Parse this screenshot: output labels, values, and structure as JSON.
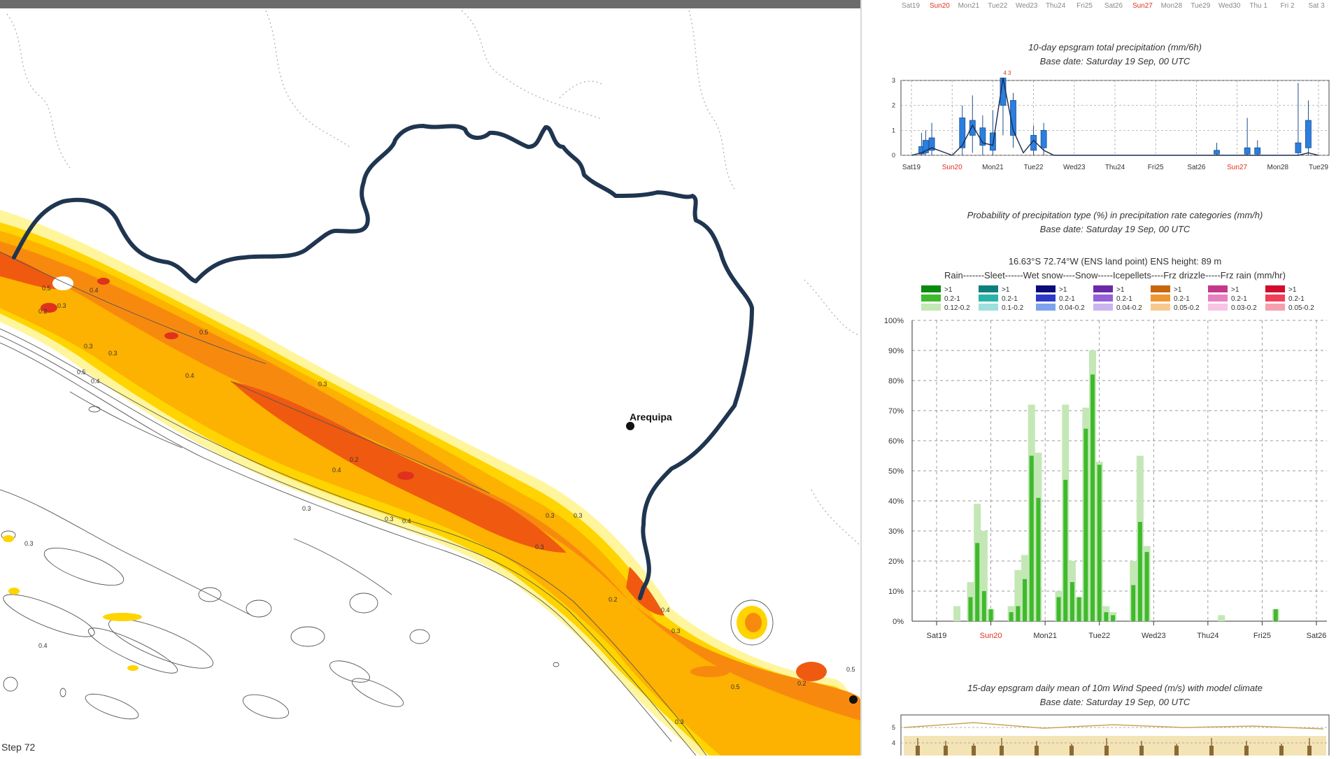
{
  "map": {
    "city_label": "Arequipa",
    "step_label": "Step 72",
    "contour_labels": [
      "0.5",
      "0.3",
      "0.4",
      "0.2",
      "0.3",
      "0.5",
      "0.4",
      "0.3",
      "0.5",
      "0.4",
      "0.3",
      "0.2",
      "0.4",
      "0.3",
      "0.3",
      "0.4",
      "0.3",
      "0.3",
      "0.3",
      "0.2",
      "0.4",
      "0.3",
      "0.5",
      "0.3",
      "0.2",
      "0.5",
      "0.3",
      "0.4"
    ],
    "colors": {
      "border": "#1f3550",
      "light_yellow": "#fff59d",
      "yellow": "#ffd400",
      "amber": "#fdb100",
      "orange": "#f78a0e",
      "dark_orange": "#ef5a10",
      "red_orange": "#e0311f"
    }
  },
  "top_strip": {
    "days": [
      "Sat19",
      "Sun20",
      "Mon21",
      "Tue22",
      "Wed23",
      "Thu24",
      "Fri25",
      "Sat26",
      "Sun27",
      "Mon28",
      "Tue29",
      "Wed30",
      "Thu 1",
      "Fri 2",
      "Sat 3"
    ],
    "highlight": [
      "Sun20",
      "Sun27"
    ]
  },
  "chart_data": [
    {
      "type": "line",
      "title": "10-day epsgram total precipitation (mm/6h)",
      "subtitle": "Base date: Saturday 19 Sep, 00 UTC",
      "categories": [
        "Sat19",
        "Sun20",
        "Mon21",
        "Tue22",
        "Wed23",
        "Thu24",
        "Fri25",
        "Sat26",
        "Sun27",
        "Mon28",
        "Tue29"
      ],
      "highlight": [
        "Sun20",
        "Sun27"
      ],
      "ylim": [
        0,
        3
      ],
      "yticks": [
        0,
        1,
        2,
        3
      ],
      "overflow_note": "4 3",
      "series": [
        {
          "x": [
            0,
            0.25,
            0.5,
            0.75,
            1.0,
            1.25,
            1.5,
            1.75,
            2.0,
            2.25,
            2.5,
            2.75,
            3.0,
            3.25,
            3.5,
            4.0,
            5.0,
            6.0,
            7.0,
            8.0,
            9.0,
            9.5,
            9.75,
            10.0
          ],
          "values": [
            0.0,
            0.1,
            0.3,
            0.15,
            0.0,
            0.4,
            1.2,
            0.5,
            0.4,
            3.1,
            1.0,
            0.1,
            0.6,
            0.2,
            0.0,
            0.0,
            0.0,
            0.0,
            0.0,
            0.0,
            0.0,
            0.0,
            0.1,
            0.0
          ]
        }
      ],
      "boxes": [
        {
          "x": 0.25,
          "low": 0.0,
          "q1": 0.05,
          "q3": 0.35,
          "high": 0.9
        },
        {
          "x": 0.35,
          "low": 0.0,
          "q1": 0.1,
          "q3": 0.6,
          "high": 1.0
        },
        {
          "x": 0.5,
          "low": 0.0,
          "q1": 0.2,
          "q3": 0.7,
          "high": 1.3
        },
        {
          "x": 1.25,
          "low": 0.0,
          "q1": 0.3,
          "q3": 1.5,
          "high": 2.0
        },
        {
          "x": 1.5,
          "low": 0.1,
          "q1": 0.8,
          "q3": 1.4,
          "high": 2.4
        },
        {
          "x": 1.75,
          "low": 0.0,
          "q1": 0.4,
          "q3": 1.1,
          "high": 1.6
        },
        {
          "x": 2.0,
          "low": 0.0,
          "q1": 0.2,
          "q3": 0.9,
          "high": 1.8
        },
        {
          "x": 2.25,
          "low": 0.8,
          "q1": 2.0,
          "q3": 3.1,
          "high": 3.1
        },
        {
          "x": 2.5,
          "low": 0.3,
          "q1": 0.8,
          "q3": 2.2,
          "high": 2.5
        },
        {
          "x": 3.0,
          "low": 0.0,
          "q1": 0.2,
          "q3": 0.8,
          "high": 1.2
        },
        {
          "x": 3.25,
          "low": 0.0,
          "q1": 0.3,
          "q3": 1.0,
          "high": 1.3
        },
        {
          "x": 7.5,
          "low": 0.0,
          "q1": 0.05,
          "q3": 0.2,
          "high": 0.5
        },
        {
          "x": 8.25,
          "low": 0.0,
          "q1": 0.05,
          "q3": 0.3,
          "high": 1.5
        },
        {
          "x": 8.5,
          "low": 0.0,
          "q1": 0.05,
          "q3": 0.3,
          "high": 0.6
        },
        {
          "x": 9.5,
          "low": 0.0,
          "q1": 0.1,
          "q3": 0.5,
          "high": 2.9
        },
        {
          "x": 9.75,
          "low": 0.0,
          "q1": 0.3,
          "q3": 1.4,
          "high": 2.2
        }
      ]
    },
    {
      "type": "bar",
      "title": "Probability of precipitation type (%) in precipitation rate categories (mm/h)",
      "subtitle": "Base date: Saturday 19 Sep, 00 UTC",
      "location": "16.63°S 72.74°W (ENS land point) ENS height: 89 m",
      "types_line": "Rain-------Sleet------Wet snow----Snow-----Icepellets----Frz drizzle-----Frz rain (mm/hr)",
      "legend": [
        {
          "type": "Rain",
          "items": [
            {
              "label": ">1",
              "color": "#0b8a12"
            },
            {
              "label": "0.2-1",
              "color": "#3fba2d"
            },
            {
              "label": "0.12-0.2",
              "color": "#c4e7b6"
            }
          ]
        },
        {
          "type": "Sleet",
          "items": [
            {
              "label": ">1",
              "color": "#0e7f7a"
            },
            {
              "label": "0.2-1",
              "color": "#2ab3a8"
            },
            {
              "label": "0.1-0.2",
              "color": "#9fe0dc"
            }
          ]
        },
        {
          "type": "Wet snow",
          "items": [
            {
              "label": ">1",
              "color": "#0a0a7a"
            },
            {
              "label": "0.2-1",
              "color": "#2f39c8"
            },
            {
              "label": "0.04-0.2",
              "color": "#7fa2ee"
            }
          ]
        },
        {
          "type": "Snow",
          "items": [
            {
              "label": ">1",
              "color": "#6a2aa8"
            },
            {
              "label": "0.2-1",
              "color": "#9561d6"
            },
            {
              "label": "0.04-0.2",
              "color": "#cbb5ee"
            }
          ]
        },
        {
          "type": "Icepellets",
          "items": [
            {
              "label": ">1",
              "color": "#c7660e"
            },
            {
              "label": "0.2-1",
              "color": "#ee9631"
            },
            {
              "label": "0.05-0.2",
              "color": "#f7c98e"
            }
          ]
        },
        {
          "type": "Frz drizzle",
          "items": [
            {
              "label": ">1",
              "color": "#c4388a"
            },
            {
              "label": "0.2-1",
              "color": "#e680c0"
            },
            {
              "label": "0.03-0.2",
              "color": "#f7c4e3"
            }
          ]
        },
        {
          "type": "Frz rain",
          "items": [
            {
              "label": ">1",
              "color": "#d10d2e"
            },
            {
              "label": "0.2-1",
              "color": "#ef3f5a"
            },
            {
              "label": "0.05-0.2",
              "color": "#f6a0ad"
            }
          ]
        }
      ],
      "categories": [
        "Sat19",
        "Sun20",
        "Mon21",
        "Tue22",
        "Wed23",
        "Thu24",
        "Fri25",
        "Sat26"
      ],
      "highlight": [
        "Sun20"
      ],
      "ylim": [
        0,
        100
      ],
      "yticks": [
        "0%",
        "10%",
        "20%",
        "30%",
        "40%",
        "50%",
        "60%",
        "70%",
        "80%",
        "90%",
        "100%"
      ],
      "bars": [
        {
          "x": 0.375,
          "light": 5,
          "mid": 0
        },
        {
          "x": 0.625,
          "light": 13,
          "mid": 8
        },
        {
          "x": 0.75,
          "light": 39,
          "mid": 26
        },
        {
          "x": 0.875,
          "light": 30,
          "mid": 10
        },
        {
          "x": 1.0,
          "light": 4,
          "mid": 4
        },
        {
          "x": 1.375,
          "light": 5,
          "mid": 3
        },
        {
          "x": 1.5,
          "light": 17,
          "mid": 5
        },
        {
          "x": 1.625,
          "light": 22,
          "mid": 14
        },
        {
          "x": 1.75,
          "light": 72,
          "mid": 55
        },
        {
          "x": 1.875,
          "light": 56,
          "mid": 41
        },
        {
          "x": 2.25,
          "light": 10,
          "mid": 8
        },
        {
          "x": 2.375,
          "light": 72,
          "mid": 47
        },
        {
          "x": 2.5,
          "light": 20,
          "mid": 13
        },
        {
          "x": 2.625,
          "light": 8,
          "mid": 8
        },
        {
          "x": 2.75,
          "light": 71,
          "mid": 64
        },
        {
          "x": 2.875,
          "light": 90,
          "mid": 82
        },
        {
          "x": 3.0,
          "light": 53,
          "mid": 52
        },
        {
          "x": 3.125,
          "light": 5,
          "mid": 3
        },
        {
          "x": 3.25,
          "light": 3,
          "mid": 2
        },
        {
          "x": 3.625,
          "light": 20,
          "mid": 12
        },
        {
          "x": 3.75,
          "light": 55,
          "mid": 33
        },
        {
          "x": 3.875,
          "light": 25,
          "mid": 23
        },
        {
          "x": 5.25,
          "light": 2,
          "mid": 0
        },
        {
          "x": 6.25,
          "light": 4,
          "mid": 4
        }
      ]
    },
    {
      "type": "line",
      "title": "15-day epsgram daily mean of 10m Wind Speed (m/s) with model climate",
      "subtitle": "Base date: Saturday 19 Sep, 00 UTC",
      "yticks": [
        4,
        5
      ]
    }
  ]
}
